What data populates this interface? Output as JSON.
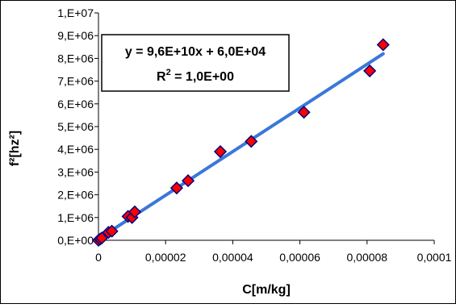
{
  "chart_data": {
    "type": "scatter",
    "xlabel": "C[m/kg]",
    "ylabel": "f²[hz²]",
    "xlim": [
      0,
      0.0001
    ],
    "ylim": [
      0,
      10000000
    ],
    "x_ticks": [
      0,
      2e-05,
      4e-05,
      6e-05,
      8e-05,
      0.0001
    ],
    "x_tick_labels": [
      "0",
      "0,00002",
      "0,00004",
      "0,00006",
      "0,00008",
      "0,0001"
    ],
    "y_ticks": [
      0,
      1000000,
      2000000,
      3000000,
      4000000,
      5000000,
      6000000,
      7000000,
      8000000,
      9000000,
      10000000
    ],
    "y_tick_labels": [
      "0,E+00",
      "1,E+06",
      "2,E+06",
      "3,E+06",
      "4,E+06",
      "5,E+06",
      "6,E+06",
      "7,E+06",
      "8,E+06",
      "9,E+06",
      "1,E+07"
    ],
    "grid": false,
    "series": [
      {
        "marker": "diamond",
        "color": "#ff0000",
        "edge_color": "#000080",
        "points": [
          {
            "x": 0,
            "y": 0
          },
          {
            "x": 5e-07,
            "y": 50000
          },
          {
            "x": 1e-06,
            "y": 100000
          },
          {
            "x": 3e-06,
            "y": 350000
          },
          {
            "x": 4e-06,
            "y": 400000
          },
          {
            "x": 8.8e-06,
            "y": 1050000
          },
          {
            "x": 1e-05,
            "y": 1000000
          },
          {
            "x": 1.08e-05,
            "y": 1250000
          },
          {
            "x": 2.33e-05,
            "y": 2300000
          },
          {
            "x": 2.67e-05,
            "y": 2620000
          },
          {
            "x": 3.63e-05,
            "y": 3900000
          },
          {
            "x": 4.55e-05,
            "y": 4350000
          },
          {
            "x": 6.12e-05,
            "y": 5630000
          },
          {
            "x": 8.08e-05,
            "y": 7450000
          },
          {
            "x": 8.48e-05,
            "y": 8600000
          }
        ]
      }
    ],
    "trendline": {
      "slope": 96000000000,
      "intercept": 60000,
      "x_range": [
        0,
        8.48e-05
      ],
      "color": "#3a78d8"
    },
    "annotation": {
      "equation": "y = 9,6E+10x + 6,0E+04",
      "r2_prefix": "R",
      "r2_sup": "2",
      "r2_suffix": " = 1,0E+00"
    }
  }
}
